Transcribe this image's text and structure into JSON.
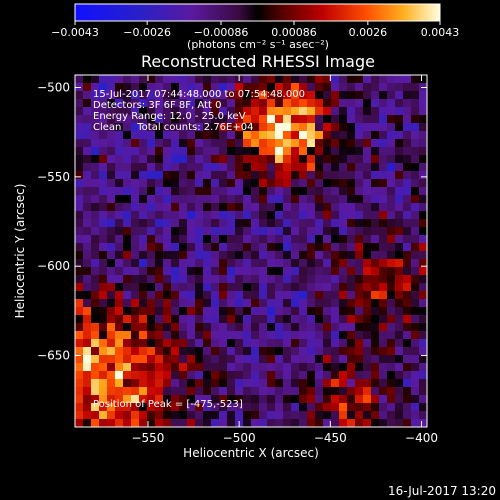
{
  "chart_data": {
    "type": "heatmap",
    "title": "Reconstructed RHESSI Image",
    "xlabel": "Heliocentric X (arcsec)",
    "ylabel": "Heliocentric Y (arcsec)",
    "xlim": [
      -590,
      -397
    ],
    "ylim": [
      -690,
      -493
    ],
    "xticks": [
      -550,
      -500,
      -450,
      -400
    ],
    "yticks": [
      -500,
      -550,
      -600,
      -650
    ],
    "colorbar": {
      "min": -0.0043,
      "max": 0.0043,
      "ticks": [
        -0.0043,
        -0.0026,
        -0.00086,
        0.00086,
        0.0026,
        0.0043
      ],
      "tick_labels": [
        "−0.0043",
        "−0.0026",
        "−0.00086",
        "0.00086",
        "0.0026",
        "0.0043"
      ],
      "units_label": "(photons cm⁻² s⁻¹ asec⁻²)"
    },
    "info_lines": [
      "15-Jul-2017 07:44:48.000 to 07:54:48.000",
      "Detectors: 3F 6F 8F, Att 0",
      "Energy Range: 12.0 - 25.0 keV",
      "Clean     Total counts: 2.76E+04"
    ],
    "peak_label": "Position of Peak = [-475,-523]",
    "sources": [
      {
        "x": -475,
        "y": -523,
        "value": 0.0043
      },
      {
        "x": -575,
        "y": -660,
        "value": 0.0036
      },
      {
        "x": -420,
        "y": -610,
        "value": 0.0022
      },
      {
        "x": -440,
        "y": -675,
        "value": 0.002
      }
    ]
  },
  "footer_timestamp": "16-Jul-2017 13:20"
}
